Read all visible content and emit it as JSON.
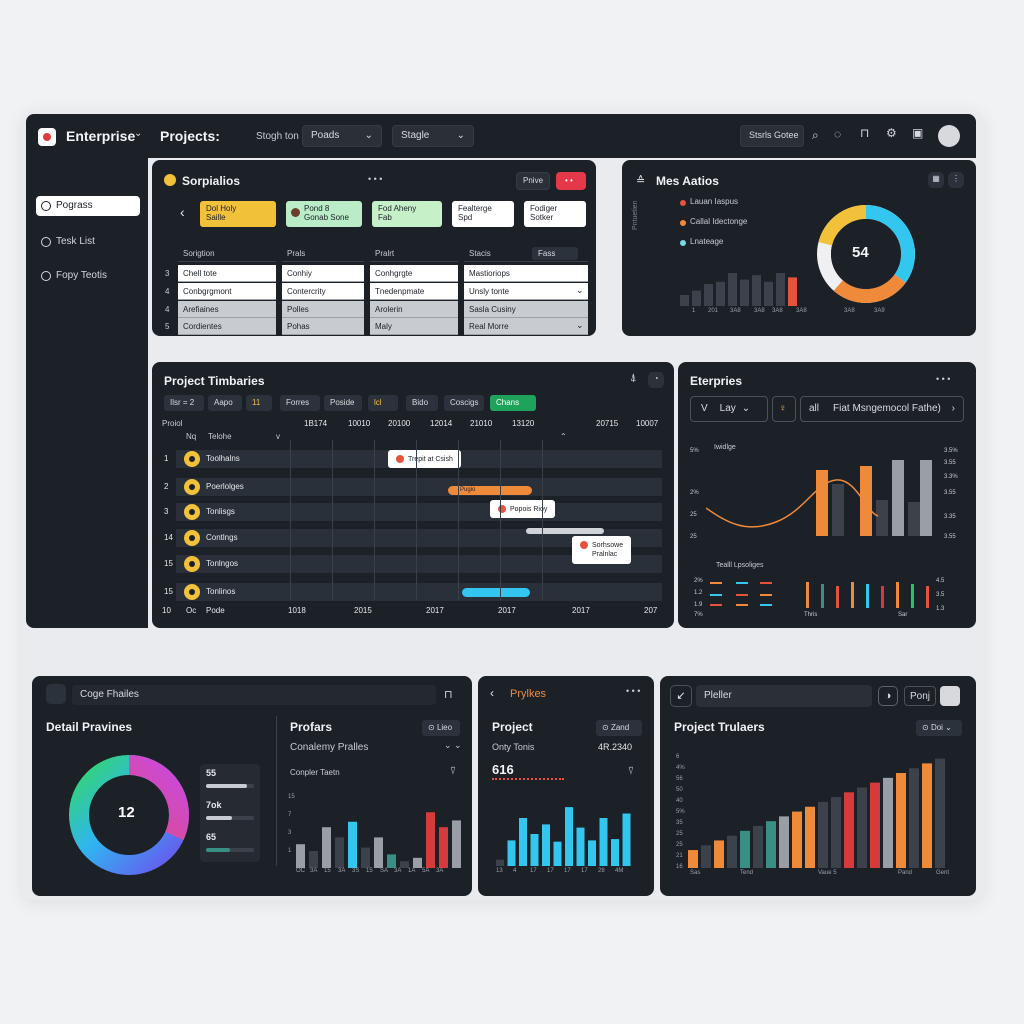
{
  "header": {
    "app_title": "Enterprise",
    "projects_label": "Projects:",
    "dropdown1": "Stogh ton",
    "dropdown2": "Poads",
    "dropdown3": "Stagle",
    "search_button": "Stsrls Gotee"
  },
  "sidebar": {
    "items": [
      {
        "label": "Pograss",
        "active": true
      },
      {
        "label": "Tesk List",
        "active": false
      },
      {
        "label": "Fopy Teotis",
        "active": false
      }
    ]
  },
  "sprint_panel": {
    "title": "Sorpialios",
    "dots": "• • •",
    "btn_a": "Pnive",
    "btn_b": "• •",
    "cards": [
      {
        "title": "Dol Holy",
        "sub": "Saille",
        "color": "#f2c13a"
      },
      {
        "title": "Pond 8",
        "sub": "Gonab Sone",
        "color": "#b9ecc7"
      },
      {
        "title": "Fod Aheny",
        "sub": "Fab",
        "color": "#c6f0c8"
      },
      {
        "title": "Fealterge",
        "sub": "Spd",
        "color": "#ffffff"
      },
      {
        "title": "Fodiger",
        "sub": "Sotker",
        "color": "#ffffff"
      }
    ],
    "columns": [
      "Sorigtion",
      "Prals",
      "Pralrt",
      "Stacis"
    ],
    "status_tag": "Fass",
    "row_numbers": [
      "3",
      "4",
      "4",
      "5"
    ],
    "rows": [
      [
        "Chell tote",
        "Conhiy",
        "Conhgrgte",
        "Mastioriops"
      ],
      [
        "Conbgrgmont",
        "Contercrity",
        "Tnedenpmate",
        "Unsly tonte"
      ],
      [
        "Arefiaines",
        "Polles",
        "Arolerin",
        "Sasla Cusiny"
      ],
      [
        "Cordientes",
        "Pohas",
        "Maly",
        "Real Morre"
      ]
    ]
  },
  "metrics_panel": {
    "title": "Mes Aatios",
    "legend": [
      {
        "label": "Lauan Iaspus",
        "color": "#e5533c"
      },
      {
        "label": "Callal Idectonge",
        "color": "#f08a3b"
      },
      {
        "label": "Lnateage",
        "color": "#7fd6e6"
      }
    ],
    "side_label": "Pntuetien",
    "donut_value": "54",
    "x_labels": [
      "1",
      "201",
      "3A8",
      "3A8",
      "3A8",
      "3A8",
      "3A8",
      "3A9"
    ]
  },
  "timeline_panel": {
    "title": "Project Timbaries",
    "chips": [
      "Ilsr = 2",
      "Aapo",
      "11",
      "Forres",
      "Poside",
      "lcl",
      "Bido",
      "Coscigs",
      "Chans"
    ],
    "year_cols": [
      "1B174",
      "10010",
      "20100",
      "12014",
      "21010",
      "13120",
      "20715",
      "10007"
    ],
    "col_headers": [
      "Proiol",
      "Nq",
      "Telohe",
      "v"
    ],
    "rows": [
      {
        "num": "1",
        "label": "Toolhalns"
      },
      {
        "num": "2",
        "label": "Poerlolges"
      },
      {
        "num": "3",
        "label": "Tonlisgs"
      },
      {
        "num": "14",
        "label": "Contlngs"
      },
      {
        "num": "15",
        "label": "Tonlngos"
      },
      {
        "num": "15",
        "label": "Tonlinos"
      }
    ],
    "footer": [
      "10",
      "Oc",
      "Pode",
      "1018",
      "2015",
      "2017",
      "2017",
      "2017",
      "207"
    ],
    "tooltips": [
      "Trepit at Csish",
      "Pugio",
      "Popois Rioy",
      "Sorhsowe",
      "Pralnlac"
    ]
  },
  "enterprise_panel": {
    "title": "Eterpries",
    "filter1": "V",
    "filter2": "Lay",
    "filter3": "all",
    "filter_long": "Fiat Msngemocol Fathe)",
    "chart_label": "Iwidlge",
    "y_left": [
      "5%",
      "2%",
      "25",
      "25"
    ],
    "y_right": [
      "3.5%",
      "3.55",
      "3.3%",
      "3.55",
      "3.35",
      "3.55"
    ],
    "sub_label": "Tealll Lpsoliges",
    "sub_y_left": [
      "2%",
      "1.2",
      "1.9",
      "7%"
    ],
    "sub_y_right": [
      "4.5",
      "3.5",
      "1.3"
    ],
    "sub_x": [
      "Thris",
      "Sar"
    ]
  },
  "detail_panel": {
    "search": "Coge Fhailes",
    "title": "Detail Pravines",
    "donut_value": "12",
    "stats": [
      {
        "label": "55",
        "fill": 0.85
      },
      {
        "label": "7ok",
        "fill": 0.55
      },
      {
        "label": "65",
        "fill": 0.5
      }
    ],
    "sub_title": "Profars",
    "sub_button": "Lieo",
    "sub_select": "Conalemy Pralles",
    "chart_label": "Conpler Taetn",
    "x_labels": [
      "OC",
      "3A",
      "15",
      "3A",
      "3S",
      "15",
      "SA",
      "3A",
      "1A",
      "5A",
      "3A"
    ]
  },
  "project_panel": {
    "header": "Prylkes",
    "title": "Project",
    "badge": "Zand",
    "label": "Onty Tonis",
    "value": "4R.2340",
    "big_value": "616",
    "x_labels": [
      "13",
      "4",
      "17",
      "17",
      "17",
      "17",
      "28",
      "4M"
    ]
  },
  "trailers_panel": {
    "search": "Pleller",
    "btn": "Ponj",
    "title": "Project Trulaers",
    "button": "Doi",
    "y_labels": [
      "6",
      "4%",
      "56",
      "50",
      "40",
      "5%",
      "35",
      "25",
      "25",
      "21",
      "16"
    ],
    "x_labels": [
      "Sas",
      "Tend",
      "Vaue 5",
      "Pand",
      "Gent"
    ]
  },
  "colors": {
    "panel": "#1c2027",
    "orange": "#f08a3b",
    "gray": "#9a9ea5",
    "dark_gray": "#3b424c",
    "cyan": "#33d2f0",
    "red": "#d63a3a",
    "teal": "#3a8f85",
    "green": "#2fbf6a",
    "yellow": "#f2c13a"
  }
}
